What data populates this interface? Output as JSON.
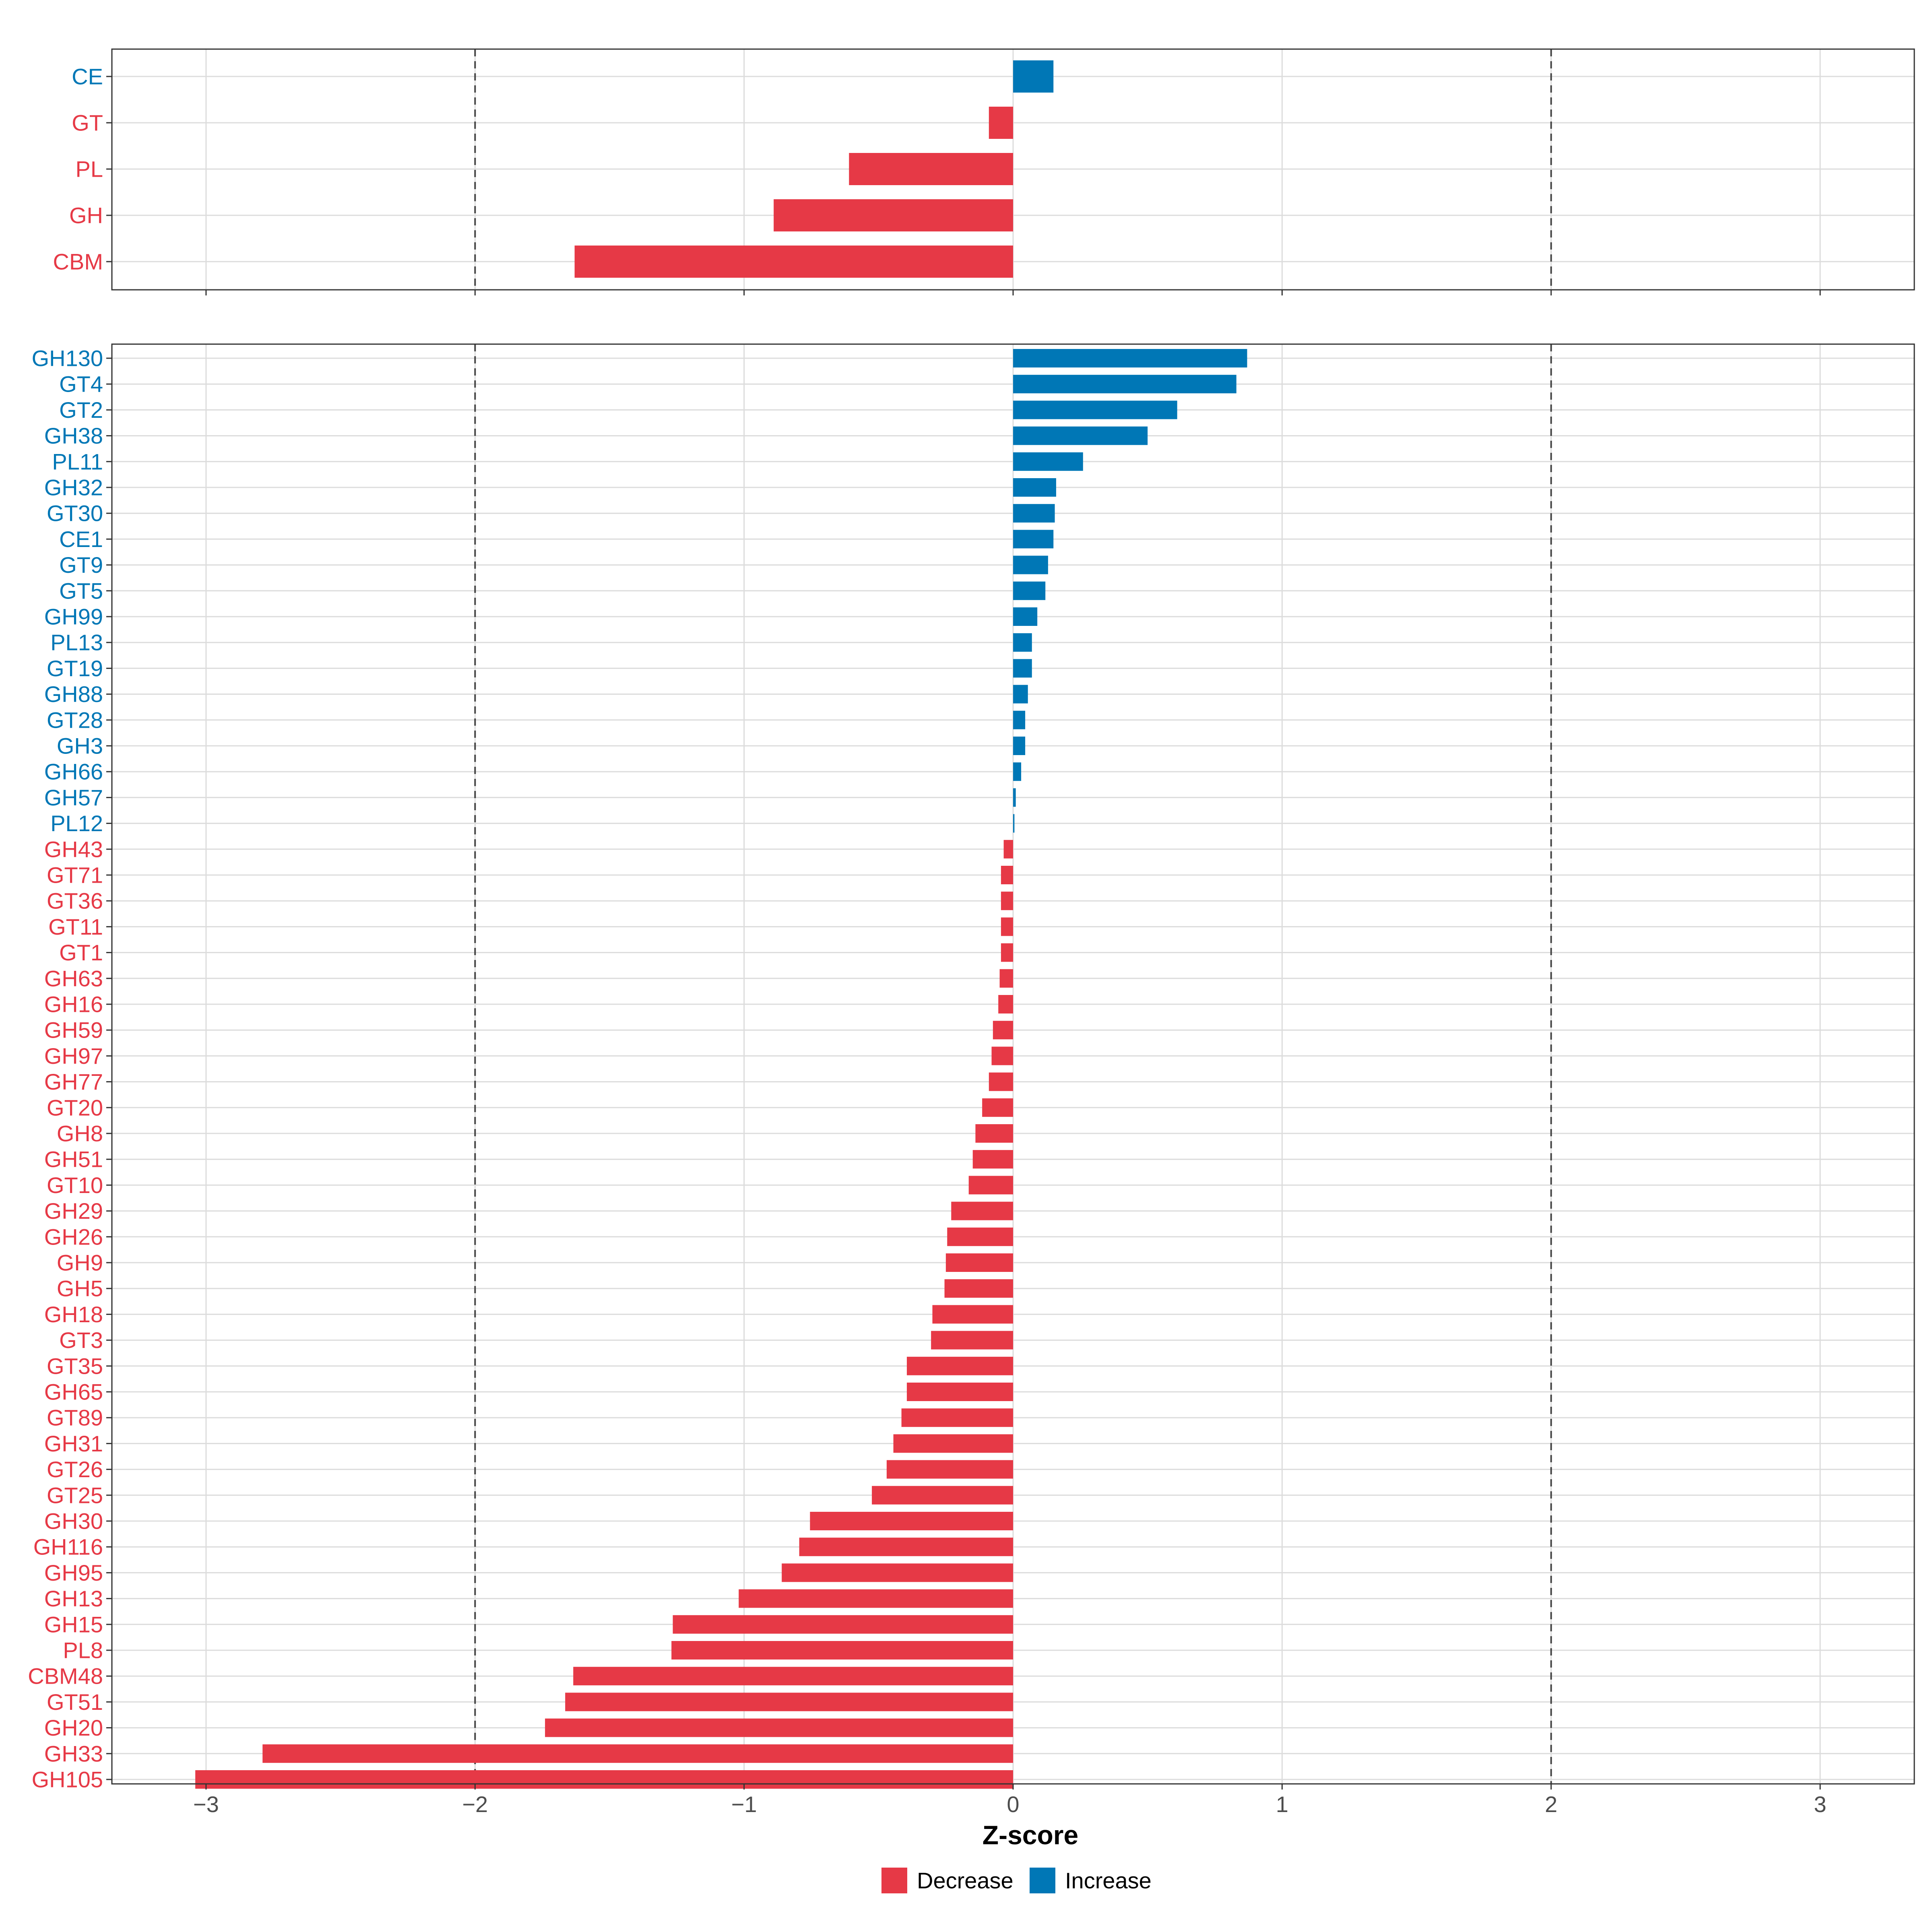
{
  "chart_data": {
    "type": "bar",
    "orientation": "horizontal",
    "xlabel": "Z-score",
    "xlim": [
      -3.35,
      3.35
    ],
    "xticks": [
      -3,
      -2,
      -1,
      0,
      1,
      2,
      3
    ],
    "reference_lines": [
      -2,
      2
    ],
    "colors": {
      "Decrease": "#E63946",
      "Increase": "#0077B6"
    },
    "legend": {
      "position": "bottom",
      "entries": [
        {
          "key": "Decrease",
          "label": "Decrease"
        },
        {
          "key": "Increase",
          "label": "Increase"
        }
      ]
    },
    "panels": [
      {
        "name": "families",
        "categories": [
          "CE",
          "GT",
          "PL",
          "GH",
          "CBM"
        ],
        "values": [
          0.15,
          -0.09,
          -0.61,
          -0.89,
          -1.63
        ]
      },
      {
        "name": "subfamilies",
        "categories": [
          "GH130",
          "GT4",
          "GT2",
          "GH38",
          "PL11",
          "GH32",
          "GT30",
          "CE1",
          "GT9",
          "GT5",
          "GH99",
          "PL13",
          "GT19",
          "GH88",
          "GT28",
          "GH3",
          "GH66",
          "GH57",
          "PL12",
          "GH43",
          "GT71",
          "GT36",
          "GT11",
          "GT1",
          "GH63",
          "GH16",
          "GH59",
          "GH97",
          "GH77",
          "GT20",
          "GH8",
          "GH51",
          "GT10",
          "GH29",
          "GH26",
          "GH9",
          "GH5",
          "GH18",
          "GT3",
          "GT35",
          "GH65",
          "GT89",
          "GH31",
          "GT26",
          "GT25",
          "GH30",
          "GH116",
          "GH95",
          "GH13",
          "GH15",
          "PL8",
          "CBM48",
          "GT51",
          "GH20",
          "GH33",
          "GH105"
        ],
        "values": [
          0.87,
          0.83,
          0.61,
          0.5,
          0.26,
          0.16,
          0.155,
          0.15,
          0.13,
          0.12,
          0.09,
          0.07,
          0.07,
          0.055,
          0.045,
          0.045,
          0.03,
          0.01,
          0.005,
          -0.035,
          -0.045,
          -0.045,
          -0.045,
          -0.045,
          -0.05,
          -0.055,
          -0.075,
          -0.08,
          -0.09,
          -0.115,
          -0.14,
          -0.15,
          -0.165,
          -0.23,
          -0.245,
          -0.25,
          -0.255,
          -0.3,
          -0.305,
          -0.395,
          -0.395,
          -0.415,
          -0.445,
          -0.47,
          -0.525,
          -0.755,
          -0.795,
          -0.86,
          -1.02,
          -1.265,
          -1.27,
          -1.635,
          -1.665,
          -1.74,
          -2.79,
          -3.04
        ]
      }
    ]
  }
}
